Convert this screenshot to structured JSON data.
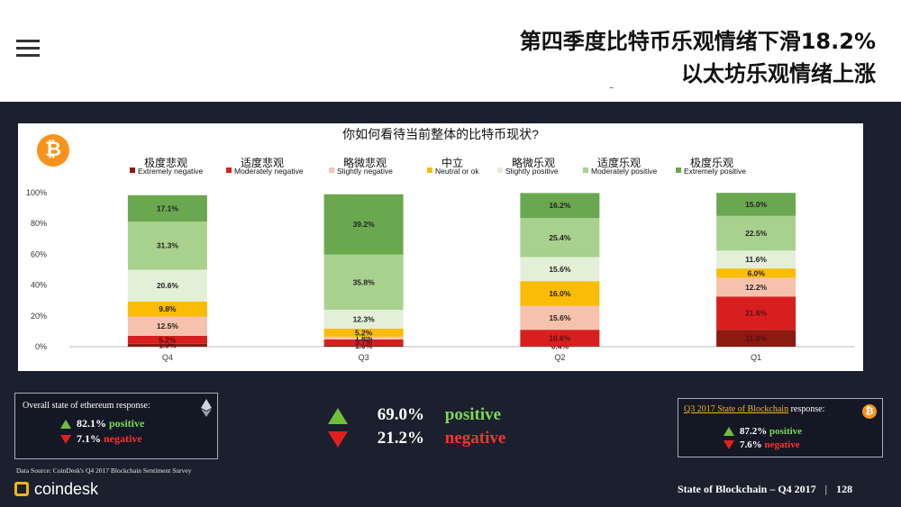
{
  "header": {
    "title_line1": "第四季度比特币乐观情绪下滑18.2%",
    "title_line2": "以太坊乐观情绪上涨",
    "dash": "–"
  },
  "colors": {
    "extremely_negative": "#8b1a10",
    "moderately_negative": "#d81f1f",
    "slightly_negative": "#f6c2ad",
    "neutral": "#fbbc05",
    "slightly_positive": "#e3f0d8",
    "moderately_positive": "#a9d18e",
    "extremely_positive": "#6aa84f"
  },
  "chart_data": {
    "type": "bar",
    "stacked": true,
    "title": "你如何看待当前整体的比特币现状?",
    "categories": [
      "Q4",
      "Q3",
      "Q2",
      "Q1"
    ],
    "yticks": [
      "0%",
      "20%",
      "40%",
      "60%",
      "80%",
      "100%"
    ],
    "ylim": [
      0,
      100
    ],
    "grid": false,
    "legend_position": "top",
    "series": [
      {
        "name": "Extremely negative",
        "name_cn": "极度悲观",
        "color": "#8b1a10",
        "values": [
          1.9,
          1.0,
          0.4,
          11.0
        ],
        "labels": [
          "1.9%",
          "1.0%",
          "0.4%",
          "11.0%"
        ]
      },
      {
        "name": "Moderately negative",
        "name_cn": "适度悲观",
        "color": "#d81f1f",
        "values": [
          5.2,
          3.7,
          10.6,
          21.6
        ],
        "labels": [
          "5.2%",
          "3.7%",
          "10.6%",
          "21.6%"
        ]
      },
      {
        "name": "Slightly negative",
        "name_cn": "略微悲观",
        "color": "#f6c2ad",
        "values": [
          12.5,
          1.8,
          15.6,
          12.2
        ],
        "labels": [
          "12.5%",
          "1.8%",
          "15.6%",
          "12.2%"
        ]
      },
      {
        "name": "Neutral or ok",
        "name_cn": "中立",
        "color": "#fbbc05",
        "values": [
          9.8,
          5.2,
          16.0,
          6.0
        ],
        "labels": [
          "9.8%",
          "5.2%",
          "16.0%",
          "6.0%"
        ]
      },
      {
        "name": "Slightly positive",
        "name_cn": "略微乐观",
        "color": "#e3f0d8",
        "values": [
          20.6,
          12.3,
          15.6,
          11.6
        ],
        "labels": [
          "20.6%",
          "12.3%",
          "15.6%",
          "11.6%"
        ]
      },
      {
        "name": "Moderately positive",
        "name_cn": "适度乐观",
        "color": "#a9d18e",
        "values": [
          31.3,
          35.8,
          25.4,
          22.5
        ],
        "labels": [
          "31.3%",
          "35.8%",
          "25.4%",
          "22.5%"
        ]
      },
      {
        "name": "Extremely positive",
        "name_cn": "极度乐观",
        "color": "#6aa84f",
        "values": [
          17.1,
          39.2,
          16.2,
          15.0
        ],
        "labels": [
          "17.1%",
          "39.2%",
          "16.2%",
          "15.0%"
        ]
      }
    ]
  },
  "btc_badge": "₿",
  "ethereum_panel": {
    "title": "Overall state of ethereum response:",
    "positive_value": "82.1%",
    "positive_label": "positive",
    "negative_value": "7.1%",
    "negative_label": "negative"
  },
  "center_summary": {
    "positive_value": "69.0%",
    "positive_label": "positive",
    "negative_value": "21.2%",
    "negative_label": "negative"
  },
  "blockchain_panel": {
    "title_link": "Q3 2017 State of Blockchain",
    "title_rest": " response:",
    "positive_value": "87.2%",
    "positive_label": "positive",
    "negative_value": "7.6%",
    "negative_label": "negative"
  },
  "footer": {
    "source": "Data Source: CoinDesk's Q4 2017 Blockchain Sentiment Survey",
    "logo_text": "coindesk",
    "report_title": "State of Blockchain – Q4 2017",
    "separator": "|",
    "page_number": "128"
  }
}
